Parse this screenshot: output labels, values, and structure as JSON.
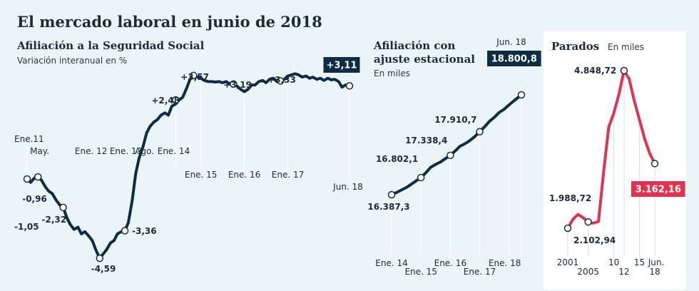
{
  "title": "El mercado laboral en junio de 2018",
  "colors": {
    "background": "#ebf4f7",
    "panel": "#ffffff",
    "line_dark": "#0f2d42",
    "line_red": "#e0334f",
    "badge_dark": "#0f2d42",
    "badge_red": "#e0334f"
  },
  "chart_data": [
    {
      "type": "line",
      "title": "Afiliación a la Seguridad Social",
      "subtitle": "Variación interanual en %",
      "x_labels": [
        "Ene.11",
        "May.",
        "Ene. 12",
        "Ene. 13",
        "Ago.",
        "Ene. 14",
        "Ene. 15",
        "Ene. 16",
        "Ene. 17",
        "Jun. 18"
      ],
      "annotations": [
        "-1,05",
        "-0,96",
        "-2,32",
        "-4,59",
        "-3,36",
        "+2,48",
        "+3,57",
        "+3,19",
        "+3,33",
        "+3,11"
      ],
      "highlight": "+3,11",
      "series": [
        {
          "x": [
            2011.0,
            2011.08,
            2011.17,
            2011.25,
            2011.33,
            2011.42,
            2011.5,
            2011.58,
            2011.67,
            2011.75,
            2011.83,
            2011.92,
            2012.0,
            2012.08,
            2012.17,
            2012.25,
            2012.33,
            2012.42,
            2012.5,
            2012.58,
            2012.67,
            2012.75,
            2012.83,
            2012.92,
            2013.0,
            2013.08,
            2013.17,
            2013.25,
            2013.33,
            2013.42,
            2013.5,
            2013.58,
            2013.67,
            2013.75,
            2013.83,
            2013.92,
            2014.0,
            2014.08,
            2014.17,
            2014.25,
            2014.33,
            2014.42,
            2014.5,
            2014.58,
            2014.67,
            2014.75,
            2014.83,
            2014.92,
            2015.0,
            2015.08,
            2015.17,
            2015.25,
            2015.33,
            2015.42,
            2015.5,
            2015.58,
            2015.67,
            2015.75,
            2015.83,
            2015.92,
            2016.0,
            2016.08,
            2016.17,
            2016.25,
            2016.33,
            2016.42,
            2016.5,
            2016.58,
            2016.67,
            2016.75,
            2016.83,
            2016.92,
            2017.0,
            2017.08,
            2017.17,
            2017.25,
            2017.33,
            2017.42,
            2017.5,
            2017.58,
            2017.67,
            2017.75,
            2017.83,
            2017.92,
            2018.0,
            2018.08,
            2018.17,
            2018.25,
            2018.33,
            2018.42
          ],
          "y": [
            -1.05,
            -1.2,
            -1.0,
            -0.96,
            -1.1,
            -1.4,
            -1.6,
            -1.7,
            -2.0,
            -2.2,
            -2.32,
            -2.8,
            -3.1,
            -3.3,
            -3.2,
            -3.5,
            -3.4,
            -3.6,
            -3.8,
            -4.2,
            -4.59,
            -4.4,
            -4.2,
            -3.9,
            -3.8,
            -3.5,
            -3.4,
            -3.36,
            -3.0,
            -2.0,
            -0.8,
            -0.1,
            0.4,
            1.0,
            1.3,
            1.5,
            1.6,
            1.8,
            1.9,
            1.8,
            2.2,
            2.3,
            2.48,
            2.6,
            3.0,
            3.4,
            3.57,
            3.5,
            3.45,
            3.35,
            3.3,
            3.3,
            3.28,
            3.3,
            3.25,
            3.3,
            3.2,
            3.19,
            3.1,
            2.95,
            2.85,
            2.95,
            3.15,
            3.15,
            3.3,
            3.35,
            3.25,
            3.4,
            3.45,
            3.3,
            3.33,
            3.4,
            3.55,
            3.6,
            3.65,
            3.6,
            3.5,
            3.55,
            3.45,
            3.5,
            3.4,
            3.45,
            3.35,
            3.45,
            3.38,
            3.4,
            3.3,
            3.05,
            3.15,
            3.11
          ]
        }
      ]
    },
    {
      "type": "line",
      "title": "Afiliación con ajuste estacional",
      "subtitle": "En miles",
      "x_labels": [
        "Ene. 14",
        "Ene. 15",
        "Ene. 16",
        "Ene. 17",
        "Ene. 18",
        "Jun. 18"
      ],
      "annotations": [
        "16.387,3",
        "16.802,1",
        "17.338,4",
        "17.910,7",
        "18.800,8"
      ],
      "highlight": "18.800,8",
      "series": [
        {
          "x": [
            2014.0,
            2014.17,
            2014.33,
            2014.5,
            2014.67,
            2014.83,
            2015.0,
            2015.17,
            2015.33,
            2015.5,
            2015.67,
            2015.83,
            2016.0,
            2016.17,
            2016.33,
            2016.5,
            2016.67,
            2016.83,
            2017.0,
            2017.17,
            2017.33,
            2017.5,
            2017.67,
            2017.83,
            2018.0,
            2018.17,
            2018.42
          ],
          "y": [
            16387.3,
            16440,
            16500,
            16560,
            16640,
            16720,
            16802.1,
            16920,
            17050,
            17120,
            17180,
            17260,
            17338.4,
            17450,
            17560,
            17620,
            17700,
            17790,
            17910.7,
            18030,
            18160,
            18260,
            18380,
            18450,
            18560,
            18660,
            18800.8
          ]
        }
      ]
    },
    {
      "type": "line",
      "title": "Parados",
      "subtitle": "En miles",
      "x_labels": [
        "2001",
        "2005",
        "10",
        "12",
        "15",
        "Jun.",
        "18"
      ],
      "annotations": [
        "1.988,72",
        "2.102,94",
        "4.848,72",
        "3.162,16"
      ],
      "highlight": "3.162,16",
      "series": [
        {
          "x": [
            2001,
            2002,
            2003,
            2004,
            2005,
            2006,
            2007,
            2008,
            2009,
            2010,
            2011,
            2012,
            2013,
            2014,
            2015,
            2016,
            2017,
            2018
          ],
          "y": [
            1988.72,
            2150,
            2240,
            2180,
            2102.94,
            2080,
            2110,
            3000,
            3820,
            4080,
            4420,
            4848.72,
            4700,
            4300,
            3960,
            3620,
            3350,
            3162.16
          ]
        }
      ]
    }
  ]
}
